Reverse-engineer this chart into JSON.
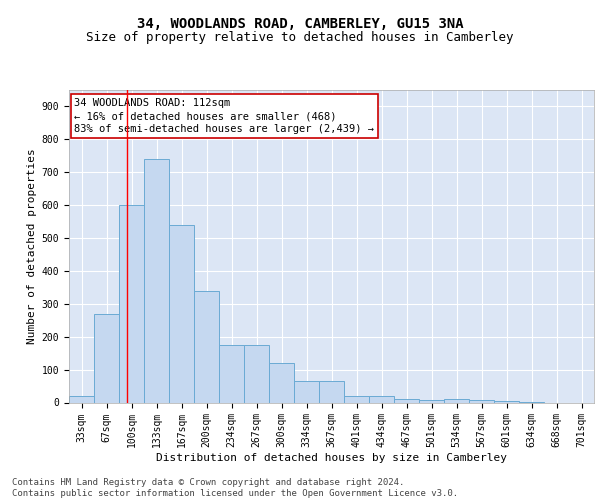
{
  "title": "34, WOODLANDS ROAD, CAMBERLEY, GU15 3NA",
  "subtitle": "Size of property relative to detached houses in Camberley",
  "xlabel": "Distribution of detached houses by size in Camberley",
  "ylabel": "Number of detached properties",
  "categories": [
    "33sqm",
    "67sqm",
    "100sqm",
    "133sqm",
    "167sqm",
    "200sqm",
    "234sqm",
    "267sqm",
    "300sqm",
    "334sqm",
    "367sqm",
    "401sqm",
    "434sqm",
    "467sqm",
    "501sqm",
    "534sqm",
    "567sqm",
    "601sqm",
    "634sqm",
    "668sqm",
    "701sqm"
  ],
  "values": [
    20,
    270,
    600,
    740,
    540,
    340,
    175,
    175,
    120,
    65,
    65,
    20,
    20,
    12,
    8,
    10,
    8,
    6,
    3,
    0,
    0
  ],
  "bar_color": "#c5d8f0",
  "bar_edge_color": "#6aaad4",
  "background_color": "#dce6f5",
  "grid_color": "#ffffff",
  "fig_background": "#ffffff",
  "red_line_x": 1.82,
  "annotation_text": "34 WOODLANDS ROAD: 112sqm\n← 16% of detached houses are smaller (468)\n83% of semi-detached houses are larger (2,439) →",
  "annotation_box_color": "#ffffff",
  "annotation_box_edge_color": "#cc0000",
  "footer_text": "Contains HM Land Registry data © Crown copyright and database right 2024.\nContains public sector information licensed under the Open Government Licence v3.0.",
  "ylim": [
    0,
    950
  ],
  "yticks": [
    0,
    100,
    200,
    300,
    400,
    500,
    600,
    700,
    800,
    900
  ],
  "title_fontsize": 10,
  "subtitle_fontsize": 9,
  "axis_label_fontsize": 8,
  "tick_fontsize": 7,
  "annotation_fontsize": 7.5,
  "footer_fontsize": 6.5
}
